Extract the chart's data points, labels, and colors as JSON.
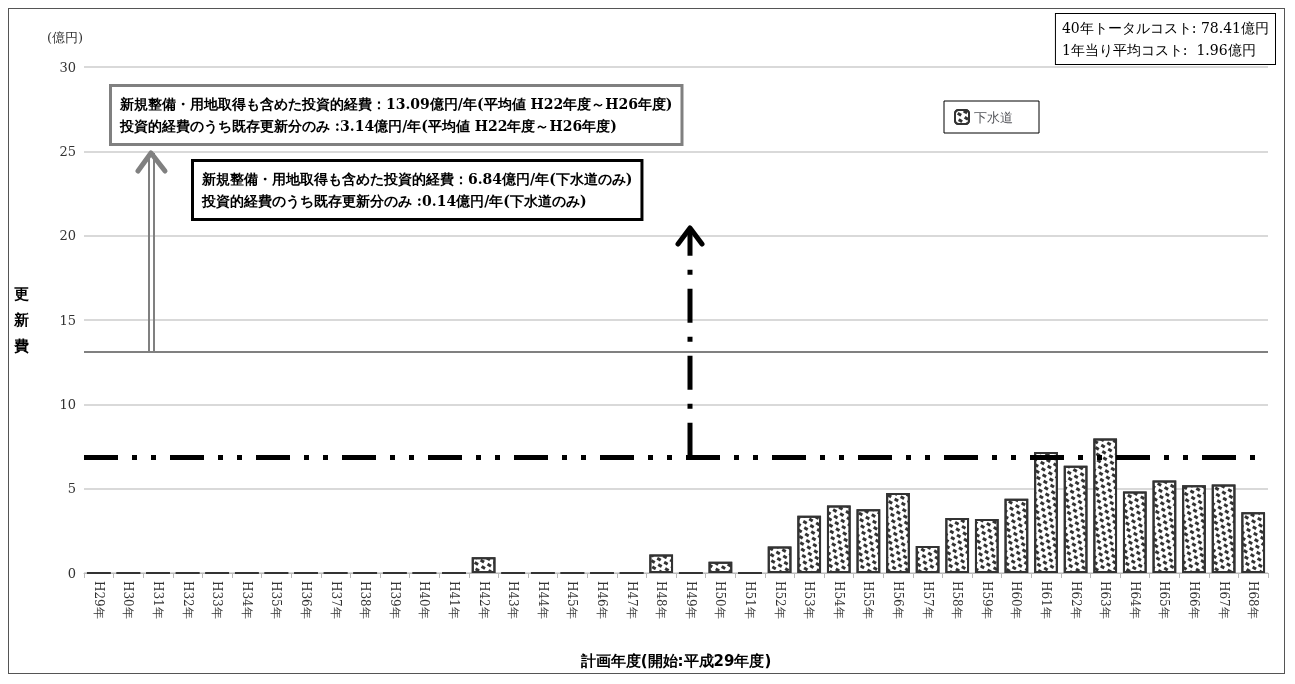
{
  "chart_data": {
    "type": "bar",
    "xlabel": "計画年度(開始:平成29年度)",
    "ylabel": "更新費",
    "categories": [
      "H29年",
      "H30年",
      "H31年",
      "H32年",
      "H33年",
      "H34年",
      "H35年",
      "H36年",
      "H37年",
      "H38年",
      "H39年",
      "H40年",
      "H41年",
      "H42年",
      "H43年",
      "H44年",
      "H45年",
      "H46年",
      "H47年",
      "H48年",
      "H49年",
      "H50年",
      "H51年",
      "H52年",
      "H53年",
      "H54年",
      "H55年",
      "H56年",
      "H57年",
      "H58年",
      "H59年",
      "H60年",
      "H61年",
      "H62年",
      "H63年",
      "H64年",
      "H65年",
      "H66年",
      "H67年",
      "H68年"
    ],
    "series": [
      {
        "name": "下水道",
        "color": "#333333",
        "values": [
          0,
          0,
          0,
          0,
          0,
          0,
          0,
          0,
          0,
          0,
          0,
          0,
          0,
          0.94,
          0,
          0,
          0,
          0,
          0,
          1.1,
          0,
          0.67,
          0,
          1.57,
          3.4,
          4.0,
          3.78,
          4.75,
          1.6,
          3.26,
          3.2,
          4.4,
          7.17,
          6.36,
          7.97,
          4.83,
          5.48,
          5.2,
          5.25,
          3.6
        ]
      }
    ],
    "ylim": [
      0,
      30
    ],
    "yticks": [
      0,
      5,
      10,
      15,
      20,
      25,
      30
    ],
    "grid": "y",
    "legend": "top right",
    "ref_lines": [
      {
        "axis": "y",
        "value": 13.09,
        "color": "#808080",
        "line_style": "solid"
      },
      {
        "axis": "y",
        "value": 6.84,
        "color": "#000000",
        "line_style": "dashed"
      }
    ],
    "annotations": [
      "(億円)",
      "40年トータルコスト: 78.41億円\n1年当り平均コスト:  1.96億円",
      {
        "text": "新規整備・用地取得も含めた投資的経費：13.09億円/年(平均値 H22年度～H26年度)\n投資的経費のうち既存更新分のみ :3.14億円/年(平均値 H22年度～H26年度)"
      },
      {
        "text": "新規整備・用地取得も含めた投資的経費：6.84億円/年(下水道のみ)\n投資的経費のうち既存更新分のみ :0.14億円/年(下水道のみ)"
      }
    ]
  }
}
